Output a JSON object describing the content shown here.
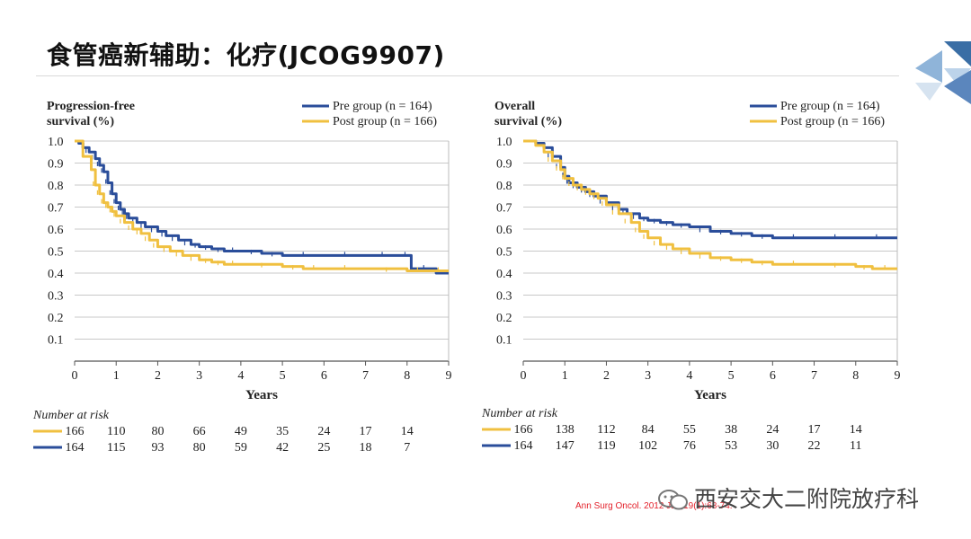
{
  "slide": {
    "title": "食管癌新辅助：化疗(JCOG9907)",
    "citation": "Ann Surg Oncol. 2012 Jan;19(1):68-74.",
    "watermark": "西安交大二附院放疗科"
  },
  "colors": {
    "pre": "#2a4d9a",
    "post": "#f0c040",
    "grid": "#c8c8c8"
  },
  "chart_data": [
    {
      "type": "line",
      "title": "Progression-free survival (%)",
      "title_lines": [
        "Progression-free",
        "survival (%)"
      ],
      "xlabel": "Years",
      "xlim": [
        0,
        9
      ],
      "ylim": [
        0,
        1
      ],
      "yticks": [
        "0.1",
        "0.2",
        "0.3",
        "0.4",
        "0.5",
        "0.6",
        "0.7",
        "0.8",
        "0.9",
        "1.0"
      ],
      "xticks": [
        "0",
        "1",
        "2",
        "3",
        "4",
        "5",
        "6",
        "7",
        "8",
        "9"
      ],
      "grid": true,
      "legend_position": "top-right",
      "series": [
        {
          "name": "Pre group (n = 164)",
          "key": "pre",
          "x": [
            0,
            0.1,
            0.2,
            0.35,
            0.5,
            0.6,
            0.7,
            0.8,
            0.9,
            1.0,
            1.1,
            1.2,
            1.3,
            1.5,
            1.7,
            2.0,
            2.2,
            2.5,
            2.8,
            3.0,
            3.3,
            3.6,
            4.0,
            4.5,
            5.0,
            6.0,
            7.0,
            7.8,
            8.1,
            8.1,
            8.7,
            8.7,
            9.0
          ],
          "y": [
            1.0,
            0.99,
            0.97,
            0.95,
            0.92,
            0.89,
            0.86,
            0.81,
            0.76,
            0.72,
            0.69,
            0.67,
            0.65,
            0.63,
            0.61,
            0.59,
            0.57,
            0.55,
            0.53,
            0.52,
            0.51,
            0.5,
            0.5,
            0.49,
            0.48,
            0.48,
            0.48,
            0.48,
            0.48,
            0.42,
            0.42,
            0.4,
            0.4
          ]
        },
        {
          "name": "Post group (n = 166)",
          "key": "post",
          "x": [
            0,
            0.2,
            0.4,
            0.5,
            0.6,
            0.7,
            0.8,
            0.9,
            1.0,
            1.2,
            1.4,
            1.6,
            1.8,
            2.0,
            2.3,
            2.6,
            3.0,
            3.3,
            3.6,
            4.0,
            5.0,
            5.5,
            6.0,
            7.0,
            8.0,
            8.5,
            9.0
          ],
          "y": [
            1.0,
            0.93,
            0.87,
            0.8,
            0.76,
            0.72,
            0.7,
            0.68,
            0.66,
            0.63,
            0.6,
            0.58,
            0.55,
            0.52,
            0.5,
            0.48,
            0.46,
            0.45,
            0.44,
            0.44,
            0.43,
            0.42,
            0.42,
            0.42,
            0.41,
            0.41,
            0.41
          ]
        }
      ],
      "risk_table": {
        "label": "Number at risk",
        "rows": [
          {
            "key": "post",
            "values": [
              "166",
              "110",
              "80",
              "66",
              "49",
              "35",
              "24",
              "17",
              "14"
            ]
          },
          {
            "key": "pre",
            "values": [
              "164",
              "115",
              "93",
              "80",
              "59",
              "42",
              "25",
              "18",
              "7"
            ]
          }
        ]
      }
    },
    {
      "type": "line",
      "title": "Overall survival (%)",
      "title_lines": [
        "Overall",
        "survival (%)"
      ],
      "xlabel": "Years",
      "xlim": [
        0,
        9
      ],
      "ylim": [
        0,
        1
      ],
      "yticks": [
        "0.1",
        "0.2",
        "0.3",
        "0.4",
        "0.5",
        "0.6",
        "0.7",
        "0.8",
        "0.9",
        "1.0"
      ],
      "xticks": [
        "0",
        "1",
        "2",
        "3",
        "4",
        "5",
        "6",
        "7",
        "8",
        "9"
      ],
      "grid": true,
      "legend_position": "top-right",
      "series": [
        {
          "name": "Pre group (n = 164)",
          "key": "pre",
          "x": [
            0,
            0.3,
            0.5,
            0.7,
            0.9,
            1.0,
            1.1,
            1.3,
            1.5,
            1.7,
            2.0,
            2.3,
            2.5,
            2.8,
            3.0,
            3.3,
            3.6,
            4.0,
            4.5,
            5.0,
            5.5,
            6.0,
            7.0,
            8.0,
            9.0
          ],
          "y": [
            1.0,
            0.99,
            0.97,
            0.93,
            0.88,
            0.84,
            0.81,
            0.79,
            0.77,
            0.75,
            0.72,
            0.69,
            0.67,
            0.65,
            0.64,
            0.63,
            0.62,
            0.61,
            0.59,
            0.58,
            0.57,
            0.56,
            0.56,
            0.56,
            0.56
          ]
        },
        {
          "name": "Post group (n = 166)",
          "key": "post",
          "x": [
            0,
            0.3,
            0.5,
            0.7,
            0.9,
            1.0,
            1.2,
            1.4,
            1.6,
            1.8,
            2.0,
            2.3,
            2.6,
            2.8,
            3.0,
            3.3,
            3.6,
            4.0,
            4.5,
            5.0,
            5.5,
            6.0,
            7.0,
            8.0,
            8.4,
            9.0
          ],
          "y": [
            1.0,
            0.98,
            0.95,
            0.91,
            0.87,
            0.83,
            0.8,
            0.78,
            0.76,
            0.74,
            0.71,
            0.67,
            0.63,
            0.59,
            0.56,
            0.53,
            0.51,
            0.49,
            0.47,
            0.46,
            0.45,
            0.44,
            0.44,
            0.43,
            0.42,
            0.42
          ]
        }
      ],
      "risk_table": {
        "label": "Number at risk",
        "rows": [
          {
            "key": "post",
            "values": [
              "166",
              "138",
              "112",
              "84",
              "55",
              "38",
              "24",
              "17",
              "14"
            ]
          },
          {
            "key": "pre",
            "values": [
              "164",
              "147",
              "119",
              "102",
              "76",
              "53",
              "30",
              "22",
              "11"
            ]
          }
        ]
      }
    }
  ]
}
